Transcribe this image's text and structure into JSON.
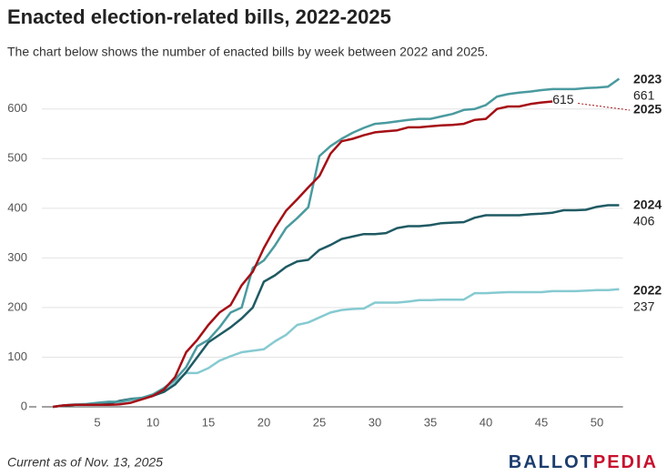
{
  "chart_data": {
    "type": "line",
    "title": "Enacted election-related bills, 2022-2025",
    "subtitle": "The chart below shows the number of enacted bills by week between 2022 and 2025.",
    "footnote": "Current as of Nov. 13, 2025",
    "logo": [
      "BALLOT",
      "PEDIA"
    ],
    "x": [
      1,
      2,
      3,
      4,
      5,
      6,
      7,
      8,
      9,
      10,
      11,
      12,
      13,
      14,
      15,
      16,
      17,
      18,
      19,
      20,
      21,
      22,
      23,
      24,
      25,
      26,
      27,
      28,
      29,
      30,
      31,
      32,
      33,
      34,
      35,
      36,
      37,
      38,
      39,
      40,
      41,
      42,
      43,
      44,
      45,
      46,
      47,
      48,
      49,
      50,
      51,
      52
    ],
    "xlim": [
      0,
      53
    ],
    "xticks": [
      5,
      10,
      15,
      20,
      25,
      30,
      35,
      40,
      45,
      50
    ],
    "ylim": [
      0,
      660
    ],
    "yticks": [
      0,
      100,
      200,
      300,
      400,
      500,
      600
    ],
    "grid": true,
    "series": [
      {
        "name": "2022",
        "color": "#86cad1",
        "values": [
          0,
          3,
          5,
          6,
          8,
          10,
          10,
          13,
          18,
          25,
          35,
          50,
          68,
          68,
          78,
          93,
          102,
          110,
          113,
          116,
          132,
          145,
          165,
          170,
          180,
          190,
          195,
          197,
          198,
          210,
          210,
          210,
          212,
          215,
          215,
          216,
          216,
          216,
          229,
          229,
          230,
          231,
          231,
          231,
          231,
          233,
          233,
          233,
          234,
          235,
          235,
          237
        ]
      },
      {
        "name": "2023",
        "color": "#4a9a9f",
        "values": [
          0,
          3,
          4,
          5,
          8,
          10,
          10,
          15,
          18,
          25,
          38,
          55,
          80,
          122,
          135,
          160,
          190,
          200,
          280,
          295,
          325,
          360,
          380,
          402,
          505,
          525,
          540,
          552,
          562,
          570,
          572,
          575,
          578,
          580,
          580,
          585,
          590,
          598,
          600,
          608,
          625,
          630,
          633,
          635,
          638,
          640,
          640,
          640,
          642,
          643,
          645,
          661
        ]
      },
      {
        "name": "2024",
        "color": "#1f5a63",
        "values": [
          0,
          3,
          4,
          4,
          5,
          6,
          12,
          16,
          18,
          22,
          30,
          45,
          70,
          100,
          130,
          145,
          160,
          178,
          200,
          252,
          265,
          282,
          293,
          296,
          316,
          326,
          338,
          343,
          348,
          348,
          350,
          360,
          364,
          364,
          366,
          370,
          371,
          372,
          381,
          386,
          386,
          386,
          386,
          388,
          389,
          391,
          396,
          396,
          397,
          403,
          406,
          406
        ]
      },
      {
        "name": "2025",
        "color": "#a50f15",
        "values": [
          0,
          3,
          4,
          4,
          4,
          4,
          5,
          8,
          15,
          22,
          35,
          60,
          110,
          135,
          165,
          190,
          205,
          245,
          272,
          320,
          360,
          395,
          418,
          442,
          465,
          510,
          535,
          540,
          547,
          553,
          555,
          557,
          563,
          563,
          565,
          567,
          568,
          570,
          578,
          580,
          600,
          605,
          605,
          610,
          613,
          615,
          null,
          null,
          null,
          null,
          null,
          null
        ]
      }
    ]
  }
}
